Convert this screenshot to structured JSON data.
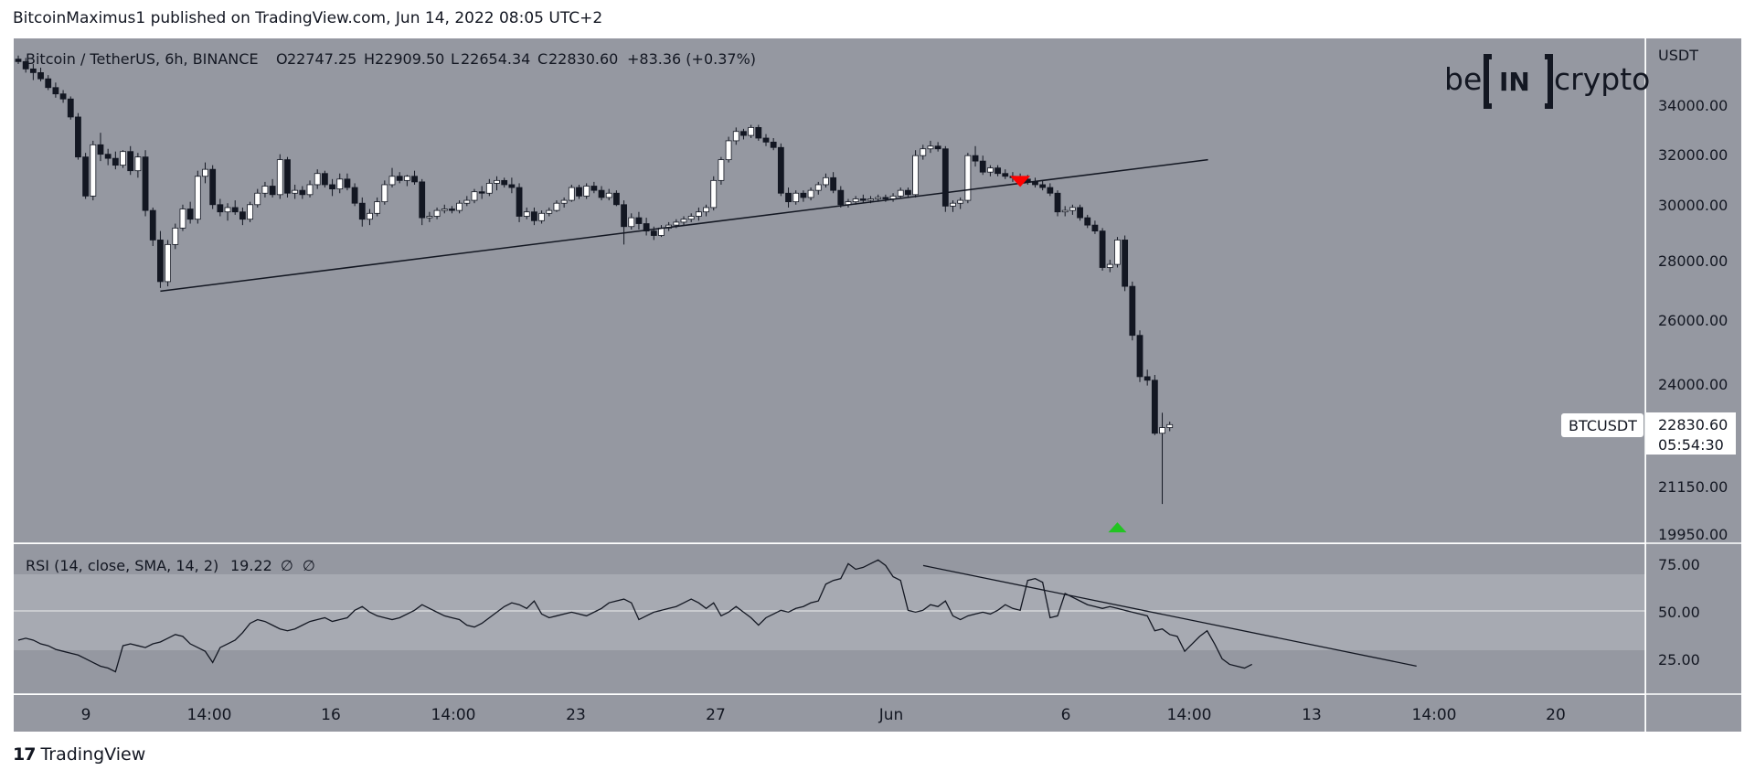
{
  "header": {
    "published_by": "BitcoinMaximus1 published on TradingView.com, Jun 14, 2022 08:05 UTC+2"
  },
  "legend": {
    "symbol": "Bitcoin / TetherUS, 6h, BINANCE",
    "open_label": "O",
    "open": "22747.25",
    "high_label": "H",
    "high": "22909.50",
    "low_label": "L",
    "low": "22654.34",
    "close_label": "C",
    "close": "22830.60",
    "change": "+83.36 (+0.37%)"
  },
  "watermark": {
    "left": "be",
    "mid": "IN",
    "right": "crypto"
  },
  "price_scale": {
    "currency": "USDT",
    "ticks": [
      "34000.00",
      "32000.00",
      "30000.00",
      "28000.00",
      "26000.00",
      "24000.00",
      "21150.00",
      "19950.00"
    ]
  },
  "last_price": {
    "symbol_badge": "BTCUSDT",
    "price": "22830.60",
    "countdown": "05:54:30"
  },
  "rsi": {
    "label": "RSI (14, close, SMA, 14, 2)",
    "value": "19.22",
    "empty1": "∅",
    "empty2": "∅",
    "ticks": [
      "75.00",
      "50.00",
      "25.00"
    ]
  },
  "time_axis": {
    "ticks": [
      "9",
      "14:00",
      "16",
      "14:00",
      "23",
      "27",
      "Jun",
      "6",
      "14:00",
      "13",
      "14:00",
      "20"
    ]
  },
  "footer": {
    "brand": "TradingView",
    "logo_text": "17"
  },
  "colors": {
    "pane_bg": "#9598a1",
    "rsi_band": "#a7aab2",
    "bull": "#ffffff",
    "bear": "#131722",
    "signal_down": "#ff0000",
    "signal_up": "#22c422"
  },
  "chart_data": [
    {
      "type": "candlestick",
      "title": "Bitcoin / TetherUS, 6h, BINANCE",
      "ylabel": "USDT",
      "ylim": [
        19950,
        35000
      ],
      "candles_ohlc": [
        [
          35050,
          35200,
          34850,
          34950
        ],
        [
          34950,
          35100,
          34500,
          34650
        ],
        [
          34650,
          34850,
          34200,
          34500
        ],
        [
          34500,
          34700,
          34150,
          34250
        ],
        [
          34250,
          34400,
          33800,
          33900
        ],
        [
          33900,
          34100,
          33500,
          33650
        ],
        [
          33650,
          33800,
          33300,
          33450
        ],
        [
          33450,
          33550,
          32650,
          32750
        ],
        [
          32750,
          32900,
          31150,
          31250
        ],
        [
          31250,
          31400,
          29750,
          29850
        ],
        [
          29850,
          31850,
          29700,
          31700
        ],
        [
          31700,
          32150,
          31100,
          31350
        ],
        [
          31350,
          31550,
          30950,
          31200
        ],
        [
          31200,
          31450,
          30800,
          30950
        ],
        [
          30950,
          31500,
          30850,
          31450
        ],
        [
          31450,
          31650,
          30600,
          30750
        ],
        [
          30750,
          31400,
          30500,
          31250
        ],
        [
          31250,
          31500,
          29150,
          29350
        ],
        [
          29350,
          29450,
          28150,
          28350
        ],
        [
          28350,
          28650,
          26800,
          27000
        ],
        [
          27000,
          28350,
          26850,
          28200
        ],
        [
          28200,
          28900,
          28050,
          28750
        ],
        [
          28750,
          29550,
          28650,
          29400
        ],
        [
          29400,
          29650,
          28900,
          29050
        ],
        [
          29050,
          30750,
          28900,
          30550
        ],
        [
          30550,
          31050,
          30300,
          30800
        ],
        [
          30800,
          30950,
          29400,
          29550
        ],
        [
          29550,
          29750,
          29150,
          29300
        ],
        [
          29300,
          29600,
          29000,
          29450
        ],
        [
          29450,
          29700,
          29200,
          29300
        ],
        [
          29300,
          29450,
          28850,
          29050
        ],
        [
          29050,
          29650,
          28950,
          29550
        ],
        [
          29550,
          30100,
          29450,
          29950
        ],
        [
          29950,
          30350,
          29800,
          30200
        ],
        [
          30200,
          30450,
          29800,
          29900
        ],
        [
          29900,
          31350,
          29750,
          31150
        ],
        [
          31150,
          31250,
          29800,
          29950
        ],
        [
          29950,
          30250,
          29750,
          30050
        ],
        [
          30050,
          30200,
          29750,
          29900
        ],
        [
          29900,
          30400,
          29800,
          30250
        ],
        [
          30250,
          30800,
          30100,
          30650
        ],
        [
          30650,
          30750,
          30150,
          30250
        ],
        [
          30250,
          30450,
          29850,
          30100
        ],
        [
          30100,
          30650,
          29950,
          30450
        ],
        [
          30450,
          30650,
          30050,
          30150
        ],
        [
          30150,
          30300,
          29500,
          29600
        ],
        [
          29600,
          29800,
          28800,
          29050
        ],
        [
          29050,
          29400,
          28850,
          29250
        ],
        [
          29250,
          29800,
          29150,
          29650
        ],
        [
          29650,
          30400,
          29550,
          30250
        ],
        [
          30250,
          30850,
          30150,
          30550
        ],
        [
          30550,
          30700,
          30300,
          30400
        ],
        [
          30400,
          30600,
          30200,
          30550
        ],
        [
          30550,
          30750,
          30250,
          30350
        ],
        [
          30350,
          30450,
          28850,
          29100
        ],
        [
          29100,
          29300,
          28950,
          29150
        ],
        [
          29150,
          29450,
          29050,
          29350
        ],
        [
          29350,
          29550,
          29250,
          29400
        ],
        [
          29400,
          29500,
          29250,
          29350
        ],
        [
          29350,
          29700,
          29250,
          29600
        ],
        [
          29600,
          29850,
          29500,
          29700
        ],
        [
          29700,
          30100,
          29600,
          30000
        ],
        [
          30000,
          30200,
          29750,
          29950
        ],
        [
          29950,
          30450,
          29850,
          30300
        ],
        [
          30300,
          30550,
          30050,
          30400
        ],
        [
          30400,
          30500,
          30150,
          30250
        ],
        [
          30250,
          30500,
          29950,
          30150
        ],
        [
          30150,
          30300,
          28950,
          29150
        ],
        [
          29150,
          29450,
          29050,
          29300
        ],
        [
          29300,
          29450,
          28850,
          29000
        ],
        [
          29000,
          29350,
          28900,
          29250
        ],
        [
          29250,
          29450,
          29150,
          29350
        ],
        [
          29350,
          29700,
          29300,
          29600
        ],
        [
          29600,
          29800,
          29450,
          29700
        ],
        [
          29700,
          30250,
          29650,
          30150
        ],
        [
          30150,
          30250,
          29750,
          29850
        ],
        [
          29850,
          30300,
          29750,
          30200
        ],
        [
          30200,
          30350,
          29950,
          30050
        ],
        [
          30050,
          30200,
          29700,
          29800
        ],
        [
          29800,
          30100,
          29700,
          29950
        ],
        [
          29950,
          30050,
          29500,
          29550
        ],
        [
          29550,
          29700,
          28200,
          28800
        ],
        [
          28800,
          29250,
          28700,
          29100
        ],
        [
          29100,
          29300,
          28700,
          28900
        ],
        [
          28900,
          29100,
          28500,
          28650
        ],
        [
          28650,
          28800,
          28350,
          28500
        ],
        [
          28500,
          28850,
          28450,
          28750
        ],
        [
          28750,
          28950,
          28650,
          28850
        ],
        [
          28850,
          29050,
          28750,
          28950
        ],
        [
          28950,
          29150,
          28850,
          29050
        ],
        [
          29050,
          29250,
          28950,
          29150
        ],
        [
          29150,
          29450,
          29000,
          29300
        ],
        [
          29300,
          29550,
          29150,
          29450
        ],
        [
          29450,
          30550,
          29350,
          30400
        ],
        [
          30400,
          31250,
          30250,
          31150
        ],
        [
          31150,
          32000,
          31050,
          31850
        ],
        [
          31850,
          32350,
          31700,
          32200
        ],
        [
          32200,
          32300,
          31900,
          32050
        ],
        [
          32050,
          32450,
          31950,
          32350
        ],
        [
          32350,
          32450,
          31850,
          31950
        ],
        [
          31950,
          32100,
          31650,
          31800
        ],
        [
          31800,
          31950,
          31500,
          31600
        ],
        [
          31600,
          31750,
          29850,
          29950
        ],
        [
          29950,
          30150,
          29450,
          29650
        ],
        [
          29650,
          30050,
          29550,
          29950
        ],
        [
          29950,
          30050,
          29650,
          29800
        ],
        [
          29800,
          30150,
          29700,
          30050
        ],
        [
          30050,
          30350,
          29900,
          30250
        ],
        [
          30250,
          30650,
          30150,
          30500
        ],
        [
          30500,
          30700,
          29950,
          30050
        ],
        [
          30050,
          30200,
          29450,
          29550
        ],
        [
          29550,
          29750,
          29450,
          29650
        ],
        [
          29650,
          29850,
          29550,
          29750
        ],
        [
          29750,
          29900,
          29600,
          29700
        ],
        [
          29700,
          29850,
          29600,
          29750
        ],
        [
          29750,
          29900,
          29650,
          29800
        ],
        [
          29800,
          29900,
          29650,
          29750
        ],
        [
          29750,
          29950,
          29650,
          29850
        ],
        [
          29850,
          30150,
          29750,
          30050
        ],
        [
          30050,
          30150,
          29800,
          29900
        ],
        [
          29900,
          31500,
          29800,
          31300
        ],
        [
          31300,
          31700,
          31150,
          31550
        ],
        [
          31550,
          31850,
          31400,
          31650
        ],
        [
          31650,
          31800,
          31450,
          31550
        ],
        [
          31550,
          31650,
          29300,
          29500
        ],
        [
          29500,
          29700,
          29300,
          29600
        ],
        [
          29600,
          29800,
          29400,
          29700
        ],
        [
          29700,
          31400,
          29600,
          31300
        ],
        [
          31300,
          31650,
          30900,
          31100
        ],
        [
          31100,
          31300,
          30600,
          30700
        ],
        [
          30700,
          30950,
          30550,
          30850
        ],
        [
          30850,
          30950,
          30550,
          30650
        ],
        [
          30650,
          30800,
          30450,
          30550
        ],
        [
          30550,
          30700,
          30350,
          30500
        ],
        [
          30500,
          30650,
          30350,
          30450
        ],
        [
          30450,
          30600,
          30250,
          30350
        ],
        [
          30350,
          30500,
          30150,
          30250
        ],
        [
          30250,
          30400,
          30050,
          30150
        ],
        [
          30150,
          30300,
          29850,
          29950
        ],
        [
          29950,
          30050,
          29150,
          29300
        ],
        [
          29300,
          29500,
          29150,
          29350
        ],
        [
          29350,
          29550,
          29200,
          29450
        ],
        [
          29450,
          29550,
          29000,
          29100
        ],
        [
          29100,
          29200,
          28750,
          28850
        ],
        [
          28850,
          29000,
          28550,
          28650
        ],
        [
          28650,
          28750,
          27350,
          27450
        ],
        [
          27450,
          27700,
          27300,
          27550
        ],
        [
          27550,
          28450,
          27450,
          28350
        ],
        [
          28350,
          28500,
          26700,
          26850
        ],
        [
          26850,
          27000,
          25200,
          25350
        ],
        [
          25350,
          25500,
          24000,
          24150
        ],
        [
          24150,
          24350,
          23900,
          24050
        ],
        [
          24050,
          24200,
          22550,
          22600
        ],
        [
          22600,
          23150,
          20800,
          22750
        ],
        [
          22750,
          22910,
          22654,
          22830
        ]
      ],
      "trendlines": [
        {
          "name": "ascending support",
          "from": {
            "index": 19,
            "price": 26700
          },
          "to": {
            "index": 131,
            "price": 30200
          }
        }
      ],
      "signals": [
        {
          "type": "sell",
          "index": 134,
          "price": 30300
        },
        {
          "type": "buy",
          "index": 147,
          "price": 20250
        }
      ]
    },
    {
      "type": "line",
      "title": "RSI (14, close, SMA, 14, 2)",
      "ylim": [
        5,
        82
      ],
      "bands": [
        30,
        70
      ],
      "midline": 50,
      "values": [
        32,
        33,
        32,
        30,
        29,
        27,
        26,
        25,
        24,
        22,
        20,
        18,
        17,
        15,
        29,
        30,
        29,
        28,
        30,
        31,
        33,
        35,
        34,
        30,
        28,
        26,
        20,
        28,
        30,
        32,
        36,
        41,
        43,
        42,
        40,
        38,
        37,
        38,
        40,
        42,
        43,
        44,
        42,
        43,
        44,
        48,
        50,
        47,
        45,
        44,
        43,
        44,
        46,
        48,
        51,
        49,
        47,
        45,
        44,
        43,
        40,
        39,
        41,
        44,
        47,
        50,
        52,
        51,
        49,
        53,
        46,
        44,
        45,
        46,
        47,
        46,
        45,
        47,
        49,
        52,
        53,
        54,
        52,
        43,
        45,
        47,
        48,
        49,
        50,
        52,
        54,
        52,
        49,
        52,
        45,
        47,
        50,
        47,
        44,
        40,
        44,
        46,
        48,
        47,
        49,
        50,
        52,
        53,
        62,
        64,
        65,
        73,
        70,
        71,
        73,
        75,
        72,
        66,
        64,
        48,
        47,
        48,
        51,
        50,
        53,
        45,
        43,
        45,
        46,
        47,
        46,
        48,
        51,
        49,
        48,
        64,
        65,
        63,
        44,
        45,
        57,
        55,
        53,
        51,
        50,
        49,
        50,
        49,
        48,
        47,
        46,
        45,
        37,
        38,
        35,
        34,
        26,
        30,
        34,
        37,
        30,
        22,
        19,
        18,
        17,
        19
      ],
      "trendlines": [
        {
          "name": "descending resistance",
          "from": {
            "index": 122,
            "value": 72
          },
          "to": {
            "index": 165,
            "value": 22
          }
        }
      ]
    }
  ]
}
